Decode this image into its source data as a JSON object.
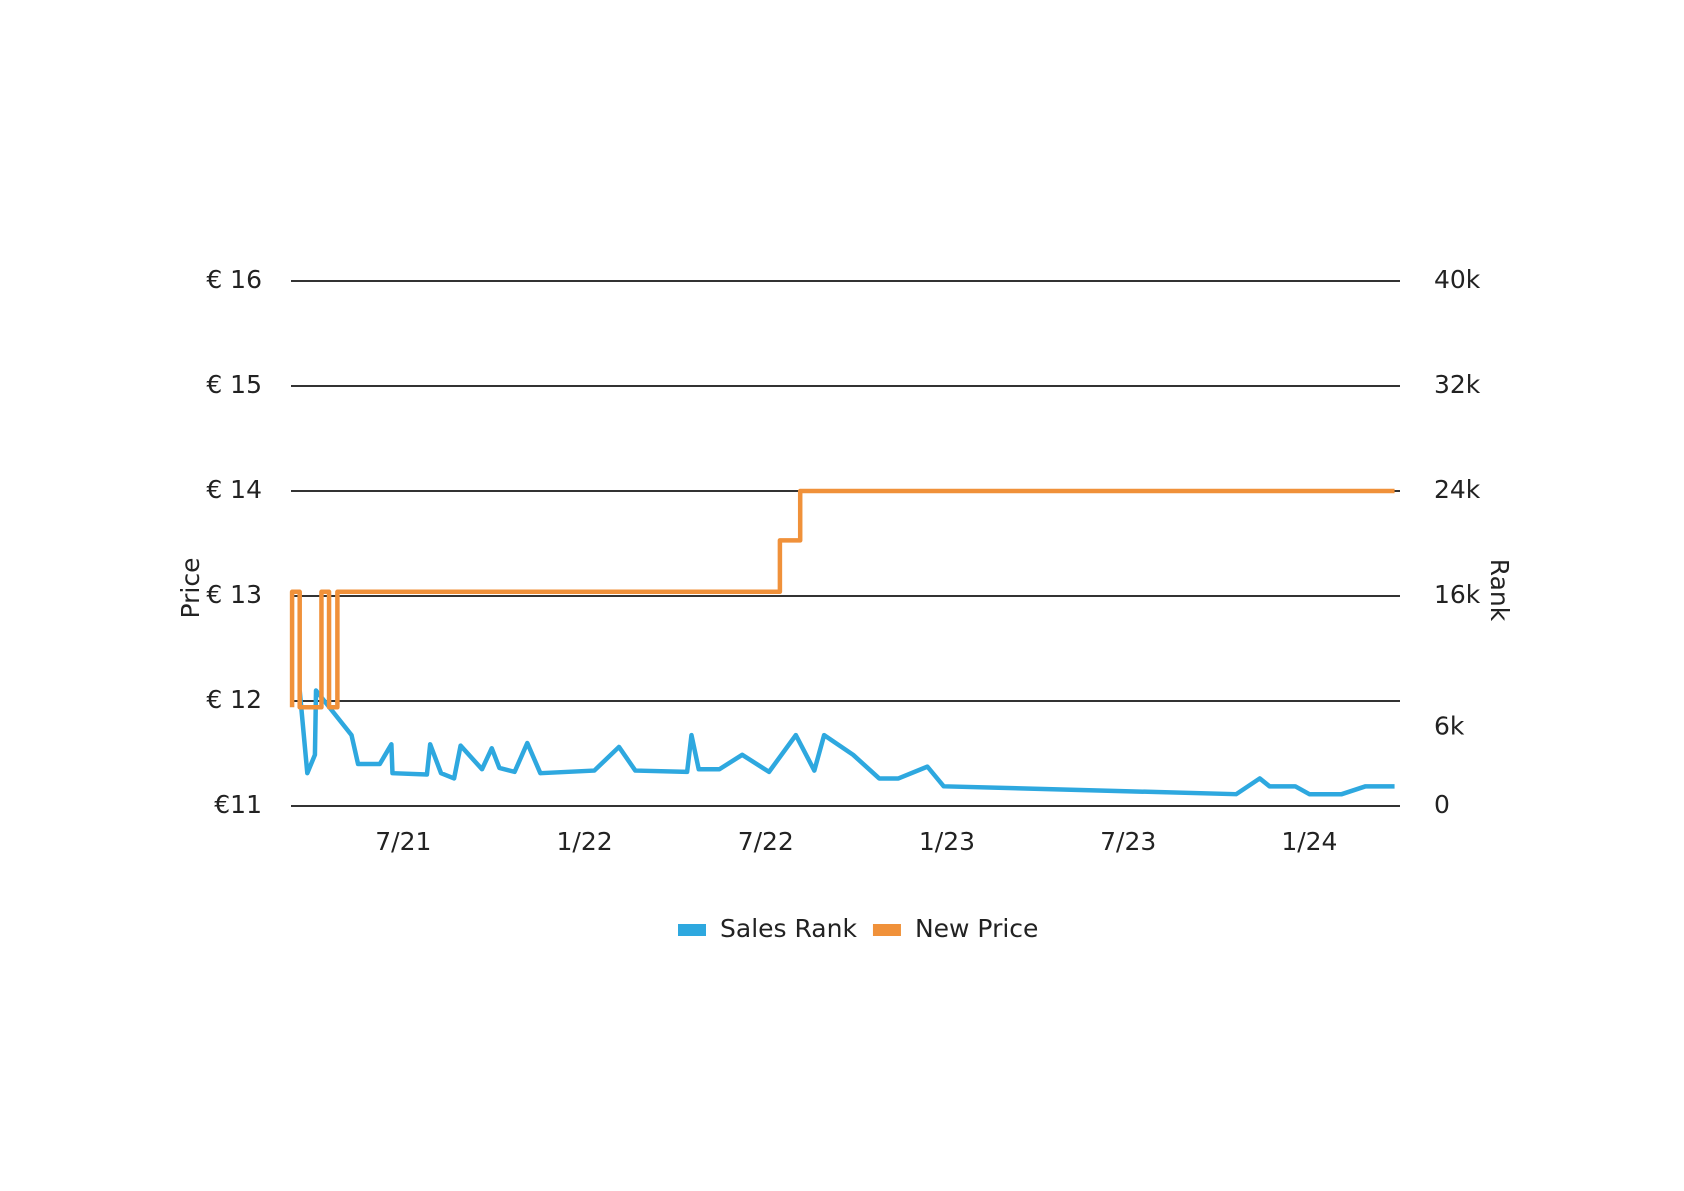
{
  "chart_data": {
    "type": "line",
    "y_label": "Price",
    "y2_label": "Rank",
    "xlim": [
      2021.19,
      2024.25
    ],
    "xticks": [
      {
        "value": 2021.5,
        "label": "7/21"
      },
      {
        "value": 2022.0,
        "label": "1/22"
      },
      {
        "value": 2022.5,
        "label": "7/22"
      },
      {
        "value": 2023.0,
        "label": "1/23"
      },
      {
        "value": 2023.5,
        "label": "7/23"
      },
      {
        "value": 2024.0,
        "label": "1/24"
      }
    ],
    "ylim": [
      11,
      16
    ],
    "yticks": [
      {
        "value": 11,
        "label": "€11"
      },
      {
        "value": 12,
        "label": "€ 12"
      },
      {
        "value": 13,
        "label": "€ 13"
      },
      {
        "value": 14,
        "label": "€ 14"
      },
      {
        "value": 15,
        "label": "€ 15"
      },
      {
        "value": 16,
        "label": "€ 16"
      }
    ],
    "y2lim": [
      0,
      40000
    ],
    "y2ticks": [
      0,
      {
        "value": 6000,
        "label": "6k"
      },
      {
        "value": 16000,
        "label": "16k"
      },
      {
        "value": 24000,
        "label": "24k"
      },
      {
        "value": 32000,
        "label": "32k"
      },
      {
        "value": 40000,
        "label": "40k"
      }
    ],
    "grid": true,
    "legend": "bottom",
    "series": [
      {
        "name": "Sales Rank",
        "color": "#2ea8df",
        "axis": "y2",
        "x": [
          2021.214,
          2021.235,
          2021.256,
          2021.259,
          2021.357,
          2021.375,
          2021.435,
          2021.467,
          2021.47,
          2021.565,
          2021.574,
          2021.604,
          2021.64,
          2021.658,
          2021.717,
          2021.744,
          2021.765,
          2021.807,
          2021.842,
          2021.878,
          2022.027,
          2022.095,
          2022.14,
          2022.283,
          2022.295,
          2022.315,
          2022.372,
          2022.435,
          2022.509,
          2022.583,
          2022.634,
          2022.661,
          2022.741,
          2022.813,
          2022.866,
          2022.946,
          2022.991,
          2023.798,
          2023.863,
          2023.89,
          2023.961,
          2024.0,
          2024.089,
          2024.155,
          2024.235
        ],
        "values": [
          8800,
          2500,
          3900,
          8800,
          5400,
          3200,
          3200,
          4700,
          2500,
          2400,
          4700,
          2500,
          2100,
          4600,
          2800,
          4400,
          2900,
          2600,
          4800,
          2500,
          2700,
          4500,
          2700,
          2600,
          5400,
          2800,
          2800,
          3900,
          2600,
          5400,
          2700,
          5400,
          3900,
          2100,
          2100,
          3000,
          1500,
          900,
          2100,
          1500,
          1500,
          900,
          900,
          1500,
          1500
        ]
      },
      {
        "name": "New Price",
        "color": "#f0913a",
        "axis": "y",
        "x": [
          2021.193,
          2021.193,
          2021.214,
          2021.214,
          2021.274,
          2021.274,
          2021.295,
          2021.295,
          2021.318,
          2021.318,
          2022.539,
          2022.539,
          2022.595,
          2022.595,
          2024.235
        ],
        "values": [
          11.94,
          13.04,
          13.04,
          11.94,
          11.94,
          13.04,
          13.04,
          11.94,
          11.94,
          13.04,
          13.04,
          13.53,
          13.53,
          14.0,
          14.0
        ]
      }
    ]
  }
}
